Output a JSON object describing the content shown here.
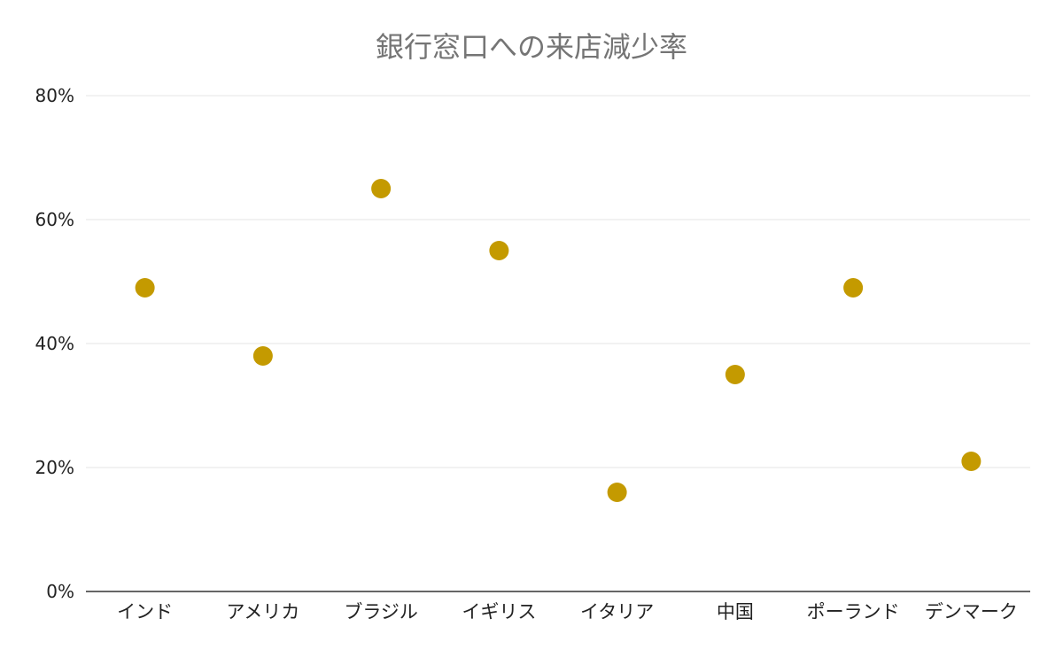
{
  "chart_data": {
    "type": "scatter",
    "title": "銀行窓口への来店減少率",
    "xlabel": "",
    "ylabel": "",
    "categories": [
      "インド",
      "アメリカ",
      "ブラジル",
      "イギリス",
      "イタリア",
      "中国",
      "ポーランド",
      "デンマーク"
    ],
    "series": [
      {
        "values": [
          49,
          38,
          65,
          55,
          16,
          35,
          49,
          21
        ],
        "color": "#C49A00"
      }
    ],
    "ylim": [
      0,
      80
    ],
    "yticks": [
      0,
      20,
      40,
      60,
      80
    ],
    "ytick_labels": [
      "0%",
      "20%",
      "40%",
      "60%",
      "80%"
    ],
    "grid": true,
    "legend": "none"
  }
}
